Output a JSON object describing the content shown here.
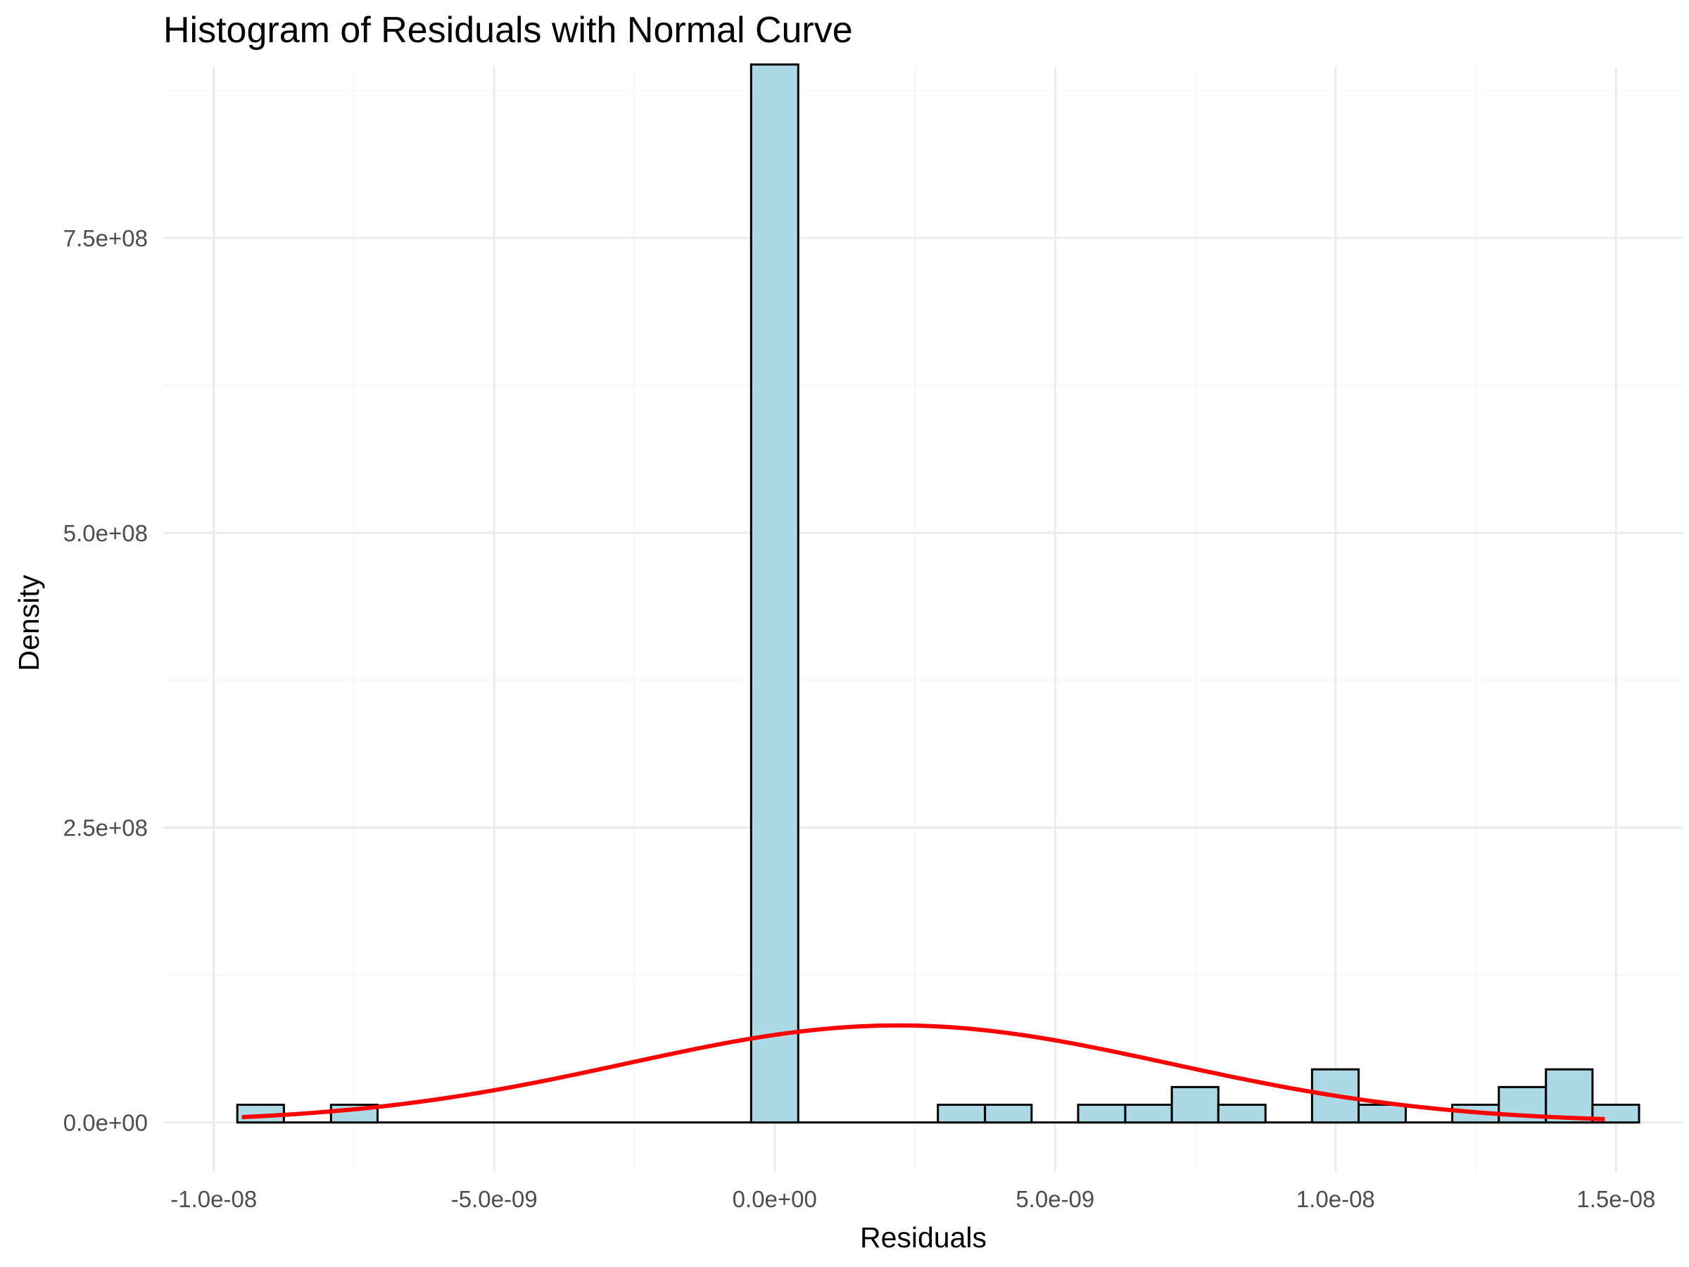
{
  "chart_data": {
    "type": "bar",
    "title": "Histogram of Residuals with Normal Curve",
    "xlabel": "Residuals",
    "ylabel": "Density",
    "xlim": [
      -1.09e-08,
      1.62e-08
    ],
    "ylim": [
      -42000000.0,
      895000000.0
    ],
    "x_ticks": [
      {
        "value": -1e-08,
        "label": "-1.0e-08"
      },
      {
        "value": -5e-09,
        "label": "-5.0e-09"
      },
      {
        "value": 0.0,
        "label": "0.0e+00"
      },
      {
        "value": 5e-09,
        "label": "5.0e-09"
      },
      {
        "value": 1e-08,
        "label": "1.0e-08"
      },
      {
        "value": 1.5e-08,
        "label": "1.5e-08"
      }
    ],
    "y_ticks": [
      {
        "value": 0.0,
        "label": "0.0e+00"
      },
      {
        "value": 250000000.0,
        "label": "2.5e+08"
      },
      {
        "value": 500000000.0,
        "label": "5.0e+08"
      },
      {
        "value": 750000000.0,
        "label": "7.5e+08"
      }
    ],
    "grid": true,
    "bin_width": 8.33e-10,
    "bins": [
      {
        "x_start": -9.58e-09,
        "x_end": -8.75e-09,
        "density": 15000000.0
      },
      {
        "x_start": -7.91e-09,
        "x_end": -7.08e-09,
        "density": 15000000.0
      },
      {
        "x_start": -4.2e-10,
        "x_end": 4.2e-10,
        "density": 897000000.0
      },
      {
        "x_start": 2.91e-09,
        "x_end": 3.75e-09,
        "density": 15000000.0
      },
      {
        "x_start": 3.75e-09,
        "x_end": 4.58e-09,
        "density": 15000000.0
      },
      {
        "x_start": 5.41e-09,
        "x_end": 6.25e-09,
        "density": 15000000.0
      },
      {
        "x_start": 6.25e-09,
        "x_end": 7.08e-09,
        "density": 15000000.0
      },
      {
        "x_start": 7.08e-09,
        "x_end": 7.91e-09,
        "density": 30000000.0
      },
      {
        "x_start": 7.91e-09,
        "x_end": 8.75e-09,
        "density": 15000000.0
      },
      {
        "x_start": 9.58e-09,
        "x_end": 1.041e-08,
        "density": 45000000.0
      },
      {
        "x_start": 1.041e-08,
        "x_end": 1.125e-08,
        "density": 15000000.0
      },
      {
        "x_start": 1.208e-08,
        "x_end": 1.291e-08,
        "density": 15000000.0
      },
      {
        "x_start": 1.291e-08,
        "x_end": 1.375e-08,
        "density": 30000000.0
      },
      {
        "x_start": 1.375e-08,
        "x_end": 1.458e-08,
        "density": 45000000.0
      },
      {
        "x_start": 1.458e-08,
        "x_end": 1.541e-08,
        "density": 15000000.0
      }
    ],
    "normal_curve": {
      "mean": 2.2e-09,
      "sd": 4.85e-09,
      "x_range": [
        -9.5e-09,
        1.48e-08
      ],
      "color": "#ff0000"
    },
    "bar_fill": "#add8e6",
    "bar_stroke": "#000000"
  }
}
